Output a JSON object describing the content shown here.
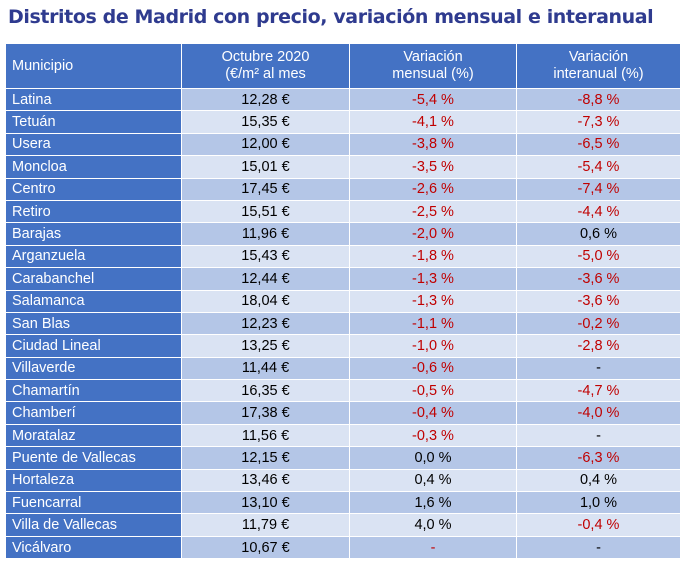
{
  "title": "Distritos de Madrid con precio, variación mensual e interanual",
  "headers": {
    "municipio": "Municipio",
    "precio_l1": "Octubre 2020",
    "precio_l2": "(€/m² al mes",
    "mensual_l1": "Variación",
    "mensual_l2": "mensual (%)",
    "interanual_l1": "Variación",
    "interanual_l2": "interanual (%)"
  },
  "colors": {
    "header_bg": "#4472c4",
    "row_dark": "#b4c6e7",
    "row_light": "#dae3f3",
    "negative": "#c00000"
  },
  "rows": [
    {
      "municipio": "Latina",
      "precio": "12,28 €",
      "mensual": "-5,4 %",
      "interanual": "-8,8 %"
    },
    {
      "municipio": "Tetuán",
      "precio": "15,35 €",
      "mensual": "-4,1 %",
      "interanual": "-7,3 %"
    },
    {
      "municipio": "Usera",
      "precio": "12,00 €",
      "mensual": "-3,8 %",
      "interanual": "-6,5 %"
    },
    {
      "municipio": "Moncloa",
      "precio": "15,01 €",
      "mensual": "-3,5 %",
      "interanual": "-5,4 %"
    },
    {
      "municipio": "Centro",
      "precio": "17,45 €",
      "mensual": "-2,6 %",
      "interanual": "-7,4 %"
    },
    {
      "municipio": "Retiro",
      "precio": "15,51 €",
      "mensual": "-2,5 %",
      "interanual": "-4,4 %"
    },
    {
      "municipio": "Barajas",
      "precio": "11,96 €",
      "mensual": "-2,0 %",
      "interanual": "0,6 %"
    },
    {
      "municipio": "Arganzuela",
      "precio": "15,43 €",
      "mensual": "-1,8 %",
      "interanual": "-5,0 %"
    },
    {
      "municipio": "Carabanchel",
      "precio": "12,44 €",
      "mensual": "-1,3 %",
      "interanual": "-3,6 %"
    },
    {
      "municipio": "Salamanca",
      "precio": "18,04 €",
      "mensual": "-1,3 %",
      "interanual": "-3,6 %"
    },
    {
      "municipio": "San Blas",
      "precio": "12,23 €",
      "mensual": "-1,1 %",
      "interanual": "-0,2 %"
    },
    {
      "municipio": "Ciudad Lineal",
      "precio": "13,25 €",
      "mensual": "-1,0 %",
      "interanual": "-2,8 %"
    },
    {
      "municipio": "Villaverde",
      "precio": "11,44 €",
      "mensual": "-0,6 %",
      "interanual": "-"
    },
    {
      "municipio": "Chamartín",
      "precio": "16,35 €",
      "mensual": "-0,5 %",
      "interanual": "-4,7 %"
    },
    {
      "municipio": "Chamberí",
      "precio": "17,38 €",
      "mensual": "-0,4 %",
      "interanual": "-4,0 %"
    },
    {
      "municipio": "Moratalaz",
      "precio": "11,56 €",
      "mensual": "-0,3 %",
      "interanual": "-"
    },
    {
      "municipio": "Puente de Vallecas",
      "precio": "12,15 €",
      "mensual": "0,0 %",
      "interanual": "-6,3 %"
    },
    {
      "municipio": "Hortaleza",
      "precio": "13,46 €",
      "mensual": "0,4 %",
      "interanual": "0,4 %"
    },
    {
      "municipio": "Fuencarral",
      "precio": "13,10 €",
      "mensual": "1,6 %",
      "interanual": "1,0 %"
    },
    {
      "municipio": "Villa de Vallecas",
      "precio": "11,79 €",
      "mensual": "4,0 %",
      "interanual": "-0,4 %"
    },
    {
      "municipio": "Vicálvaro",
      "precio": "10,67 €",
      "mensual": "-",
      "interanual": "-"
    }
  ],
  "negative_flags": {
    "mensual": [
      true,
      true,
      true,
      true,
      true,
      true,
      true,
      true,
      true,
      true,
      true,
      true,
      true,
      true,
      true,
      true,
      false,
      false,
      false,
      false,
      true
    ],
    "interanual": [
      true,
      true,
      true,
      true,
      true,
      true,
      false,
      true,
      true,
      true,
      true,
      true,
      false,
      true,
      true,
      false,
      true,
      false,
      false,
      true,
      false
    ]
  }
}
